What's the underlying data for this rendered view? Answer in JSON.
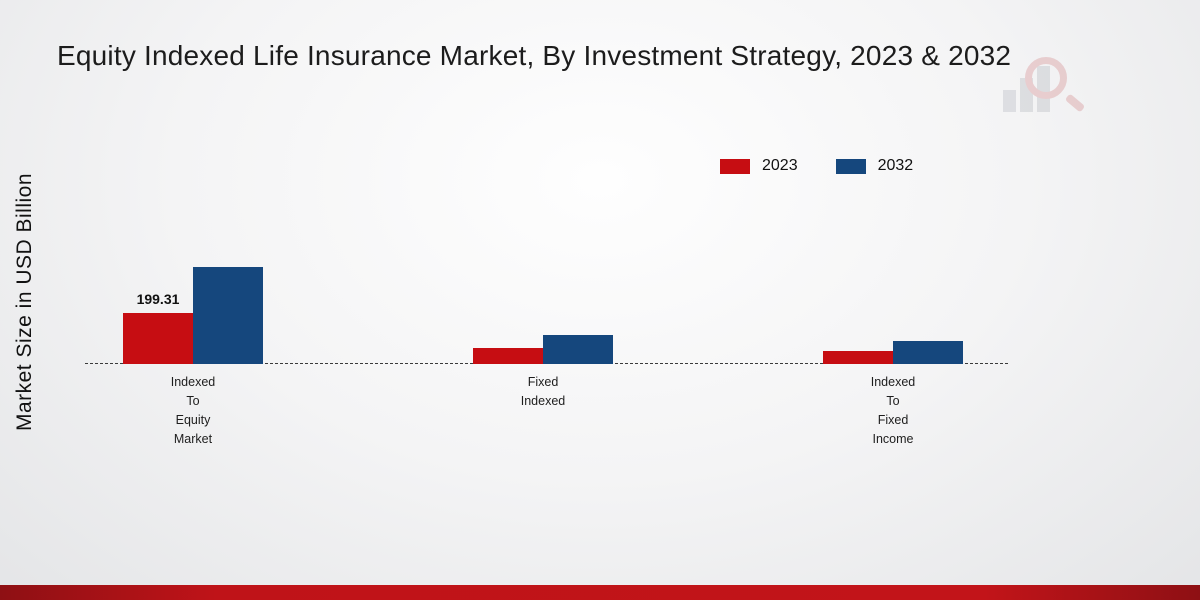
{
  "title": "Equity Indexed Life Insurance Market, By Investment Strategy, 2023 & 2032",
  "y_axis": {
    "label": "Market Size in USD Billion"
  },
  "legend": {
    "items": [
      {
        "label": "2023",
        "color": "#c60d12"
      },
      {
        "label": "2032",
        "color": "#15477d"
      }
    ]
  },
  "colors": {
    "series_2023": "#c60d12",
    "series_2032": "#15477d",
    "footer_accent": "#c21419"
  },
  "chart_data": {
    "type": "bar",
    "title": "Equity Indexed Life Insurance Market, By Investment Strategy, 2023 & 2032",
    "ylabel": "Market Size in USD Billion",
    "xlabel": "",
    "categories": [
      "Indexed\nTo\nEquity\nMarket",
      "Fixed\nIndexed",
      "Indexed\nTo\nFixed\nIncome"
    ],
    "series": [
      {
        "name": "2023",
        "color": "#c60d12",
        "values": [
          199.31,
          62,
          50
        ]
      },
      {
        "name": "2032",
        "color": "#15477d",
        "values": [
          378,
          112,
          88
        ]
      }
    ],
    "annotations": [
      {
        "series": 0,
        "category": 0,
        "text": "199.31"
      }
    ],
    "baseline_style": "dashed",
    "grid": false,
    "legend_position": "top-right",
    "ylim": [
      0,
      420
    ]
  }
}
